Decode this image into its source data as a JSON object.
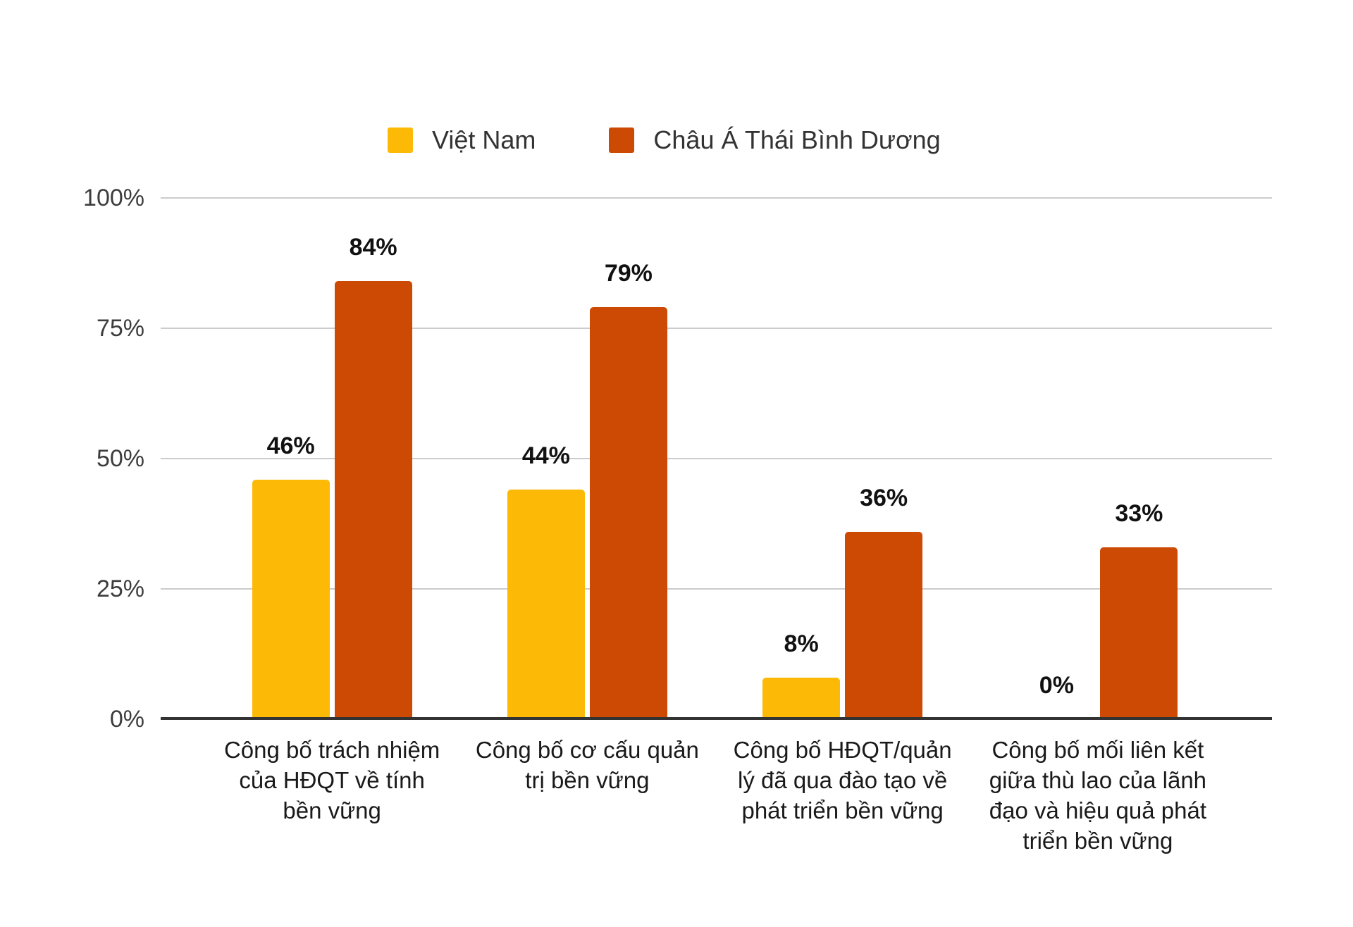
{
  "colors": {
    "grid": "#cccccc",
    "axis": "#333333",
    "ytick-text": "#3d3d3d",
    "value-text": "#111111",
    "category-text": "#1a1a1a",
    "legend-text": "#333333"
  },
  "chart_data": {
    "type": "bar",
    "title": "",
    "xlabel": "",
    "ylabel": "",
    "ylim": [
      0,
      100
    ],
    "grid": true,
    "legend_position": "top",
    "value_label_format": "{v}%",
    "y_ticks": [
      {
        "label": "100%",
        "value": 100
      },
      {
        "label": "75%",
        "value": 75
      },
      {
        "label": "50%",
        "value": 50
      },
      {
        "label": "25%",
        "value": 25
      },
      {
        "label": "0%",
        "value": 0
      }
    ],
    "categories": [
      "Công bố trách nhiệm\ncủa HĐQT về tính\nbền vững",
      "Công bố cơ cấu quản\ntrị bền vững",
      "Công bố HĐQT/quản\nlý đã qua đào tạo về\nphát triển bền vững",
      "Công bố mối liên kết\ngiữa thù lao của lãnh\nđạo và hiệu quả phát\ntriển bền vững"
    ],
    "series": [
      {
        "name": "Việt Nam",
        "key": "viet-nam",
        "color": "#FCB906",
        "values": [
          46,
          44,
          8,
          0
        ]
      },
      {
        "name": "Châu Á Thái Bình Dương",
        "key": "apac",
        "color": "#CC4A04",
        "values": [
          84,
          79,
          36,
          33
        ]
      }
    ]
  }
}
